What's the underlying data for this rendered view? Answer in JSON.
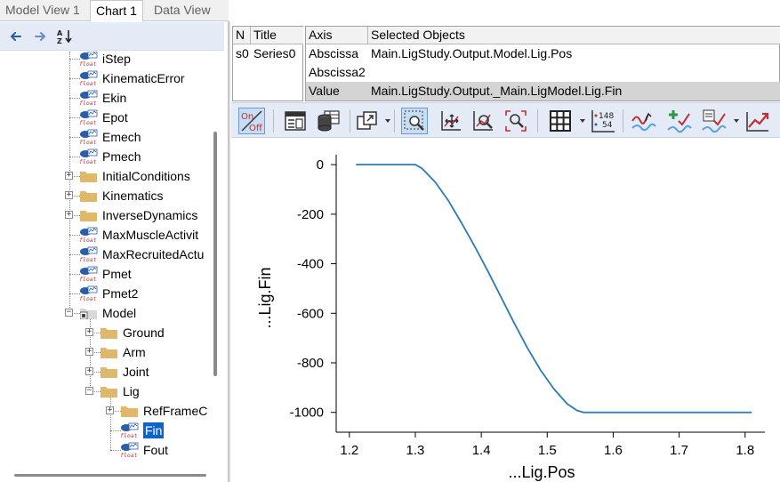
{
  "tabs": [
    {
      "label": "Model View 1",
      "active": false
    },
    {
      "label": "Chart 1",
      "active": true
    },
    {
      "label": "Data View",
      "active": false
    }
  ],
  "nav": {
    "back_icon": "arrow-left-icon",
    "forward_icon": "arrow-right-icon",
    "sort_icon": "sort-az-icon"
  },
  "tree": {
    "items": [
      {
        "label": "iStep",
        "type": "float",
        "depth": 0
      },
      {
        "label": "KinematicError",
        "type": "float",
        "depth": 0
      },
      {
        "label": "Ekin",
        "type": "float",
        "depth": 0
      },
      {
        "label": "Epot",
        "type": "float",
        "depth": 0
      },
      {
        "label": "Emech",
        "type": "float",
        "depth": 0
      },
      {
        "label": "Pmech",
        "type": "float",
        "depth": 0
      },
      {
        "label": "InitialConditions",
        "type": "folder",
        "depth": 0,
        "expander": "+"
      },
      {
        "label": "Kinematics",
        "type": "folder",
        "depth": 0,
        "expander": "+"
      },
      {
        "label": "InverseDynamics",
        "type": "folder",
        "depth": 0,
        "expander": "+"
      },
      {
        "label": "MaxMuscleActivit",
        "type": "float",
        "depth": 0
      },
      {
        "label": "MaxRecruitedActu",
        "type": "float",
        "depth": 0
      },
      {
        "label": "Pmet",
        "type": "float",
        "depth": 0
      },
      {
        "label": "Pmet2",
        "type": "float",
        "depth": 0
      },
      {
        "label": "Model",
        "type": "model-folder",
        "depth": 0,
        "expander": "-"
      },
      {
        "label": "Ground",
        "type": "folder",
        "depth": 1,
        "expander": "+"
      },
      {
        "label": "Arm",
        "type": "folder",
        "depth": 1,
        "expander": "+"
      },
      {
        "label": "Joint",
        "type": "folder",
        "depth": 1,
        "expander": "+"
      },
      {
        "label": "Lig",
        "type": "folder",
        "depth": 1,
        "expander": "-"
      },
      {
        "label": "RefFrameC",
        "type": "folder",
        "depth": 2,
        "expander": "+"
      },
      {
        "label": "Fin",
        "type": "float",
        "depth": 2,
        "selected": true
      },
      {
        "label": "Fout",
        "type": "float",
        "depth": 2
      }
    ]
  },
  "series_table": {
    "headers": [
      "N",
      "Title"
    ],
    "rows": [
      [
        "s0",
        "Series0"
      ]
    ]
  },
  "axis_table": {
    "headers": [
      "Axis",
      "Selected Objects"
    ],
    "rows": [
      [
        "Abscissa",
        "Main.LigStudy.Output.Model.Lig.Pos"
      ],
      [
        "Abscissa2",
        ""
      ],
      [
        "Value",
        "Main.LigStudy.Output._Main.LigModel.Lig.Fin"
      ]
    ]
  },
  "toolbar": {
    "buttons": [
      {
        "name": "on-off-toggle-button",
        "icon": "on-off-icon",
        "text_on": "On",
        "text_off": "Off",
        "pressed": true
      },
      {
        "name": "properties-button",
        "icon": "properties-icon"
      },
      {
        "name": "database-button",
        "icon": "database-icon"
      },
      {
        "name": "export-button",
        "icon": "export-icon",
        "dropdown": true
      },
      {
        "name": "zoom-box-button",
        "icon": "zoom-box-icon",
        "pressed": true
      },
      {
        "name": "pan-button",
        "icon": "pan-icon"
      },
      {
        "name": "zoom-button",
        "icon": "zoom-icon"
      },
      {
        "name": "zoom-fit-button",
        "icon": "zoom-fit-icon"
      },
      {
        "name": "grid-button",
        "icon": "grid-icon",
        "dropdown": true
      },
      {
        "name": "data-labels-button",
        "icon": "data-labels-icon",
        "label_top": "148",
        "label_bottom": "54"
      },
      {
        "name": "series-style-button",
        "icon": "series-style-icon"
      },
      {
        "name": "add-series-button",
        "icon": "add-series-icon"
      },
      {
        "name": "series-options-button",
        "icon": "series-options-icon",
        "dropdown": true
      },
      {
        "name": "chart-export-button",
        "icon": "chart-export-icon"
      }
    ]
  },
  "colors": {
    "line": "#2a7ab8",
    "selection": "#0a64d0",
    "toolbar_bg": "#e4ebf7",
    "folder": "#e0b86a"
  },
  "chart_data": {
    "type": "line",
    "xlabel": "...Lig.Pos",
    "ylabel": "...Lig.Fin",
    "xlim": [
      1.18,
      1.83
    ],
    "ylim": [
      -1080,
      40
    ],
    "xticks": [
      1.2,
      1.3,
      1.4,
      1.5,
      1.6,
      1.7,
      1.8
    ],
    "yticks": [
      0,
      -200,
      -400,
      -600,
      -800,
      -1000
    ],
    "series": [
      {
        "x": [
          1.21,
          1.3,
          1.31,
          1.33,
          1.35,
          1.37,
          1.39,
          1.41,
          1.43,
          1.45,
          1.47,
          1.49,
          1.51,
          1.53,
          1.545,
          1.555,
          1.56,
          1.81
        ],
        "y": [
          0,
          0,
          -15,
          -70,
          -145,
          -235,
          -330,
          -430,
          -535,
          -640,
          -740,
          -830,
          -905,
          -965,
          -992,
          -1000,
          -1000,
          -1000
        ]
      }
    ],
    "grid": false
  }
}
